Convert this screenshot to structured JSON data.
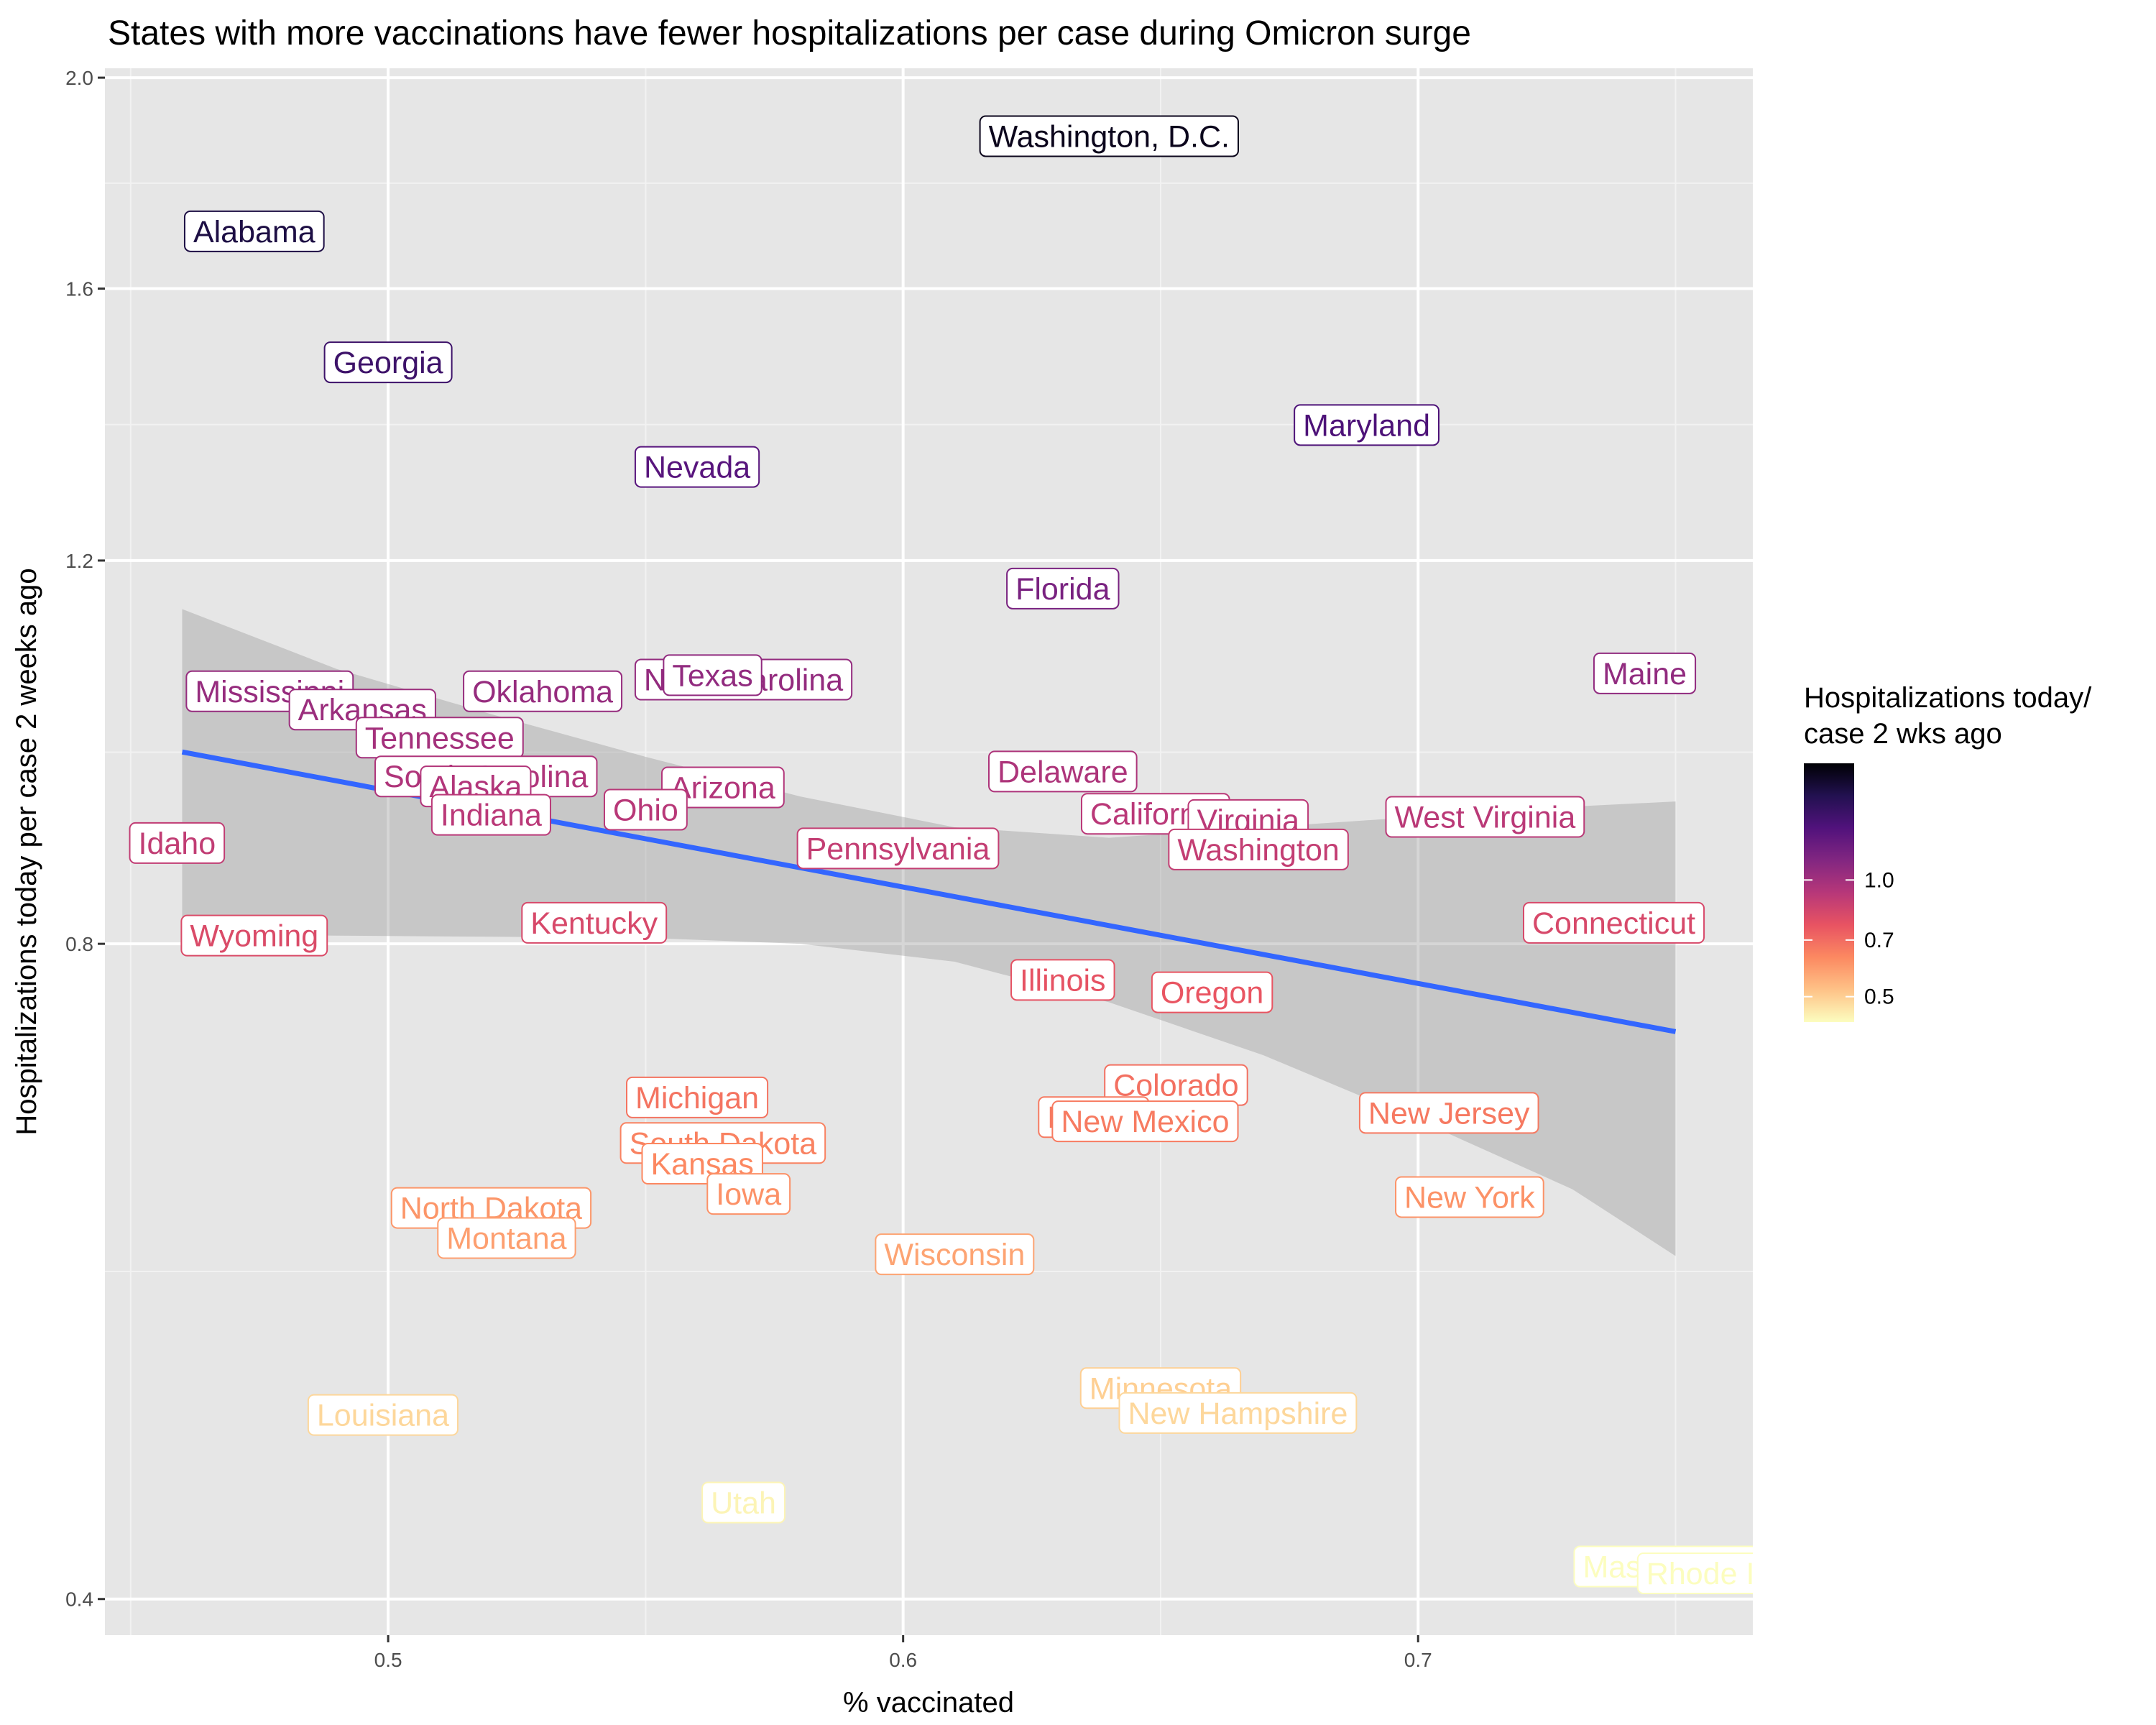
{
  "chart_data": {
    "type": "scatter",
    "title": "States with more vaccinations have fewer hospitalizations per case during Omicron surge",
    "xlabel": "% vaccinated",
    "ylabel": "Hospitalizations today per case 2 weeks ago",
    "xlim": [
      0.445,
      0.765
    ],
    "ylim": [
      0.385,
      2.02
    ],
    "y_scale": "log",
    "x_ticks": [
      0.5,
      0.6,
      0.7
    ],
    "x_tick_labels": [
      "0.5",
      "0.6",
      "0.7"
    ],
    "y_ticks": [
      0.4,
      0.8,
      1.2,
      1.6,
      2.0
    ],
    "y_tick_labels": [
      "0.4",
      "0.8",
      "1.2",
      "1.6",
      "2.0"
    ],
    "grid": true,
    "legend": {
      "title_line1": "Hospitalizations today/",
      "title_line2": "case 2 wks ago",
      "placement": "right",
      "ticks": [
        1.0,
        0.7,
        0.5
      ],
      "tick_labels": [
        "1.0",
        "0.7",
        "0.5"
      ],
      "range": [
        0.43,
        2.0
      ],
      "palette": [
        "#fcfdbf",
        "#fec287",
        "#fc8961",
        "#e85362",
        "#b73779",
        "#822681",
        "#51127c",
        "#221150",
        "#000004"
      ]
    },
    "trend_line": {
      "x": [
        0.46,
        0.75
      ],
      "y": [
        0.98,
        0.729
      ],
      "color": "#3366ff"
    },
    "confidence_band": {
      "x": [
        0.46,
        0.49,
        0.52,
        0.55,
        0.58,
        0.61,
        0.64,
        0.67,
        0.7,
        0.73,
        0.75
      ],
      "lower": [
        0.808,
        0.807,
        0.806,
        0.805,
        0.8,
        0.785,
        0.752,
        0.711,
        0.664,
        0.617,
        0.575
      ],
      "upper": [
        1.14,
        1.07,
        1.02,
        0.975,
        0.935,
        0.905,
        0.895,
        0.905,
        0.915,
        0.925,
        0.93
      ]
    },
    "points": [
      {
        "label": "Washington, D.C.",
        "x": 0.64,
        "y": 1.88
      },
      {
        "label": "Alabama",
        "x": 0.474,
        "y": 1.7
      },
      {
        "label": "Georgia",
        "x": 0.5,
        "y": 1.48
      },
      {
        "label": "Maryland",
        "x": 0.69,
        "y": 1.385
      },
      {
        "label": "Nevada",
        "x": 0.56,
        "y": 1.325
      },
      {
        "label": "Florida",
        "x": 0.631,
        "y": 1.165
      },
      {
        "label": "North Carolina",
        "x": 0.569,
        "y": 1.058
      },
      {
        "label": "Texas",
        "x": 0.563,
        "y": 1.063
      },
      {
        "label": "Maine",
        "x": 0.744,
        "y": 1.065
      },
      {
        "label": "Mississippi",
        "x": 0.477,
        "y": 1.045
      },
      {
        "label": "Oklahoma",
        "x": 0.53,
        "y": 1.045
      },
      {
        "label": "Arkansas",
        "x": 0.495,
        "y": 1.025
      },
      {
        "label": "Tennessee",
        "x": 0.51,
        "y": 0.995
      },
      {
        "label": "Delaware",
        "x": 0.631,
        "y": 0.96
      },
      {
        "label": "South Carolina",
        "x": 0.519,
        "y": 0.955
      },
      {
        "label": "Alaska",
        "x": 0.517,
        "y": 0.945
      },
      {
        "label": "Arizona",
        "x": 0.565,
        "y": 0.944
      },
      {
        "label": "Ohio",
        "x": 0.55,
        "y": 0.922
      },
      {
        "label": "Indiana",
        "x": 0.52,
        "y": 0.917
      },
      {
        "label": "California",
        "x": 0.649,
        "y": 0.918
      },
      {
        "label": "Virginia",
        "x": 0.667,
        "y": 0.912
      },
      {
        "label": "West Virginia",
        "x": 0.713,
        "y": 0.915
      },
      {
        "label": "Washington",
        "x": 0.669,
        "y": 0.884
      },
      {
        "label": "Pennsylvania",
        "x": 0.599,
        "y": 0.885
      },
      {
        "label": "Idaho",
        "x": 0.459,
        "y": 0.89
      },
      {
        "label": "Kentucky",
        "x": 0.54,
        "y": 0.818
      },
      {
        "label": "Connecticut",
        "x": 0.738,
        "y": 0.818
      },
      {
        "label": "Wyoming",
        "x": 0.474,
        "y": 0.807
      },
      {
        "label": "Illinois",
        "x": 0.631,
        "y": 0.77
      },
      {
        "label": "Oregon",
        "x": 0.66,
        "y": 0.76
      },
      {
        "label": "Colorado",
        "x": 0.653,
        "y": 0.689
      },
      {
        "label": "Michigan",
        "x": 0.56,
        "y": 0.68
      },
      {
        "label": "Hawaii",
        "x": 0.637,
        "y": 0.666
      },
      {
        "label": "New Mexico",
        "x": 0.647,
        "y": 0.663
      },
      {
        "label": "New Jersey",
        "x": 0.706,
        "y": 0.669
      },
      {
        "label": "South Dakota",
        "x": 0.565,
        "y": 0.648
      },
      {
        "label": "Kansas",
        "x": 0.561,
        "y": 0.634
      },
      {
        "label": "Iowa",
        "x": 0.57,
        "y": 0.614
      },
      {
        "label": "New York",
        "x": 0.71,
        "y": 0.612
      },
      {
        "label": "North Dakota",
        "x": 0.52,
        "y": 0.605
      },
      {
        "label": "Montana",
        "x": 0.523,
        "y": 0.586
      },
      {
        "label": "Wisconsin",
        "x": 0.61,
        "y": 0.576
      },
      {
        "label": "Minnesota",
        "x": 0.65,
        "y": 0.5
      },
      {
        "label": "New Hampshire",
        "x": 0.665,
        "y": 0.487
      },
      {
        "label": "Louisiana",
        "x": 0.499,
        "y": 0.486
      },
      {
        "label": "Utah",
        "x": 0.569,
        "y": 0.443
      },
      {
        "label": "Massachusetts",
        "x": 0.752,
        "y": 0.414
      },
      {
        "label": "Rhode Island",
        "x": 0.762,
        "y": 0.411
      }
    ]
  }
}
